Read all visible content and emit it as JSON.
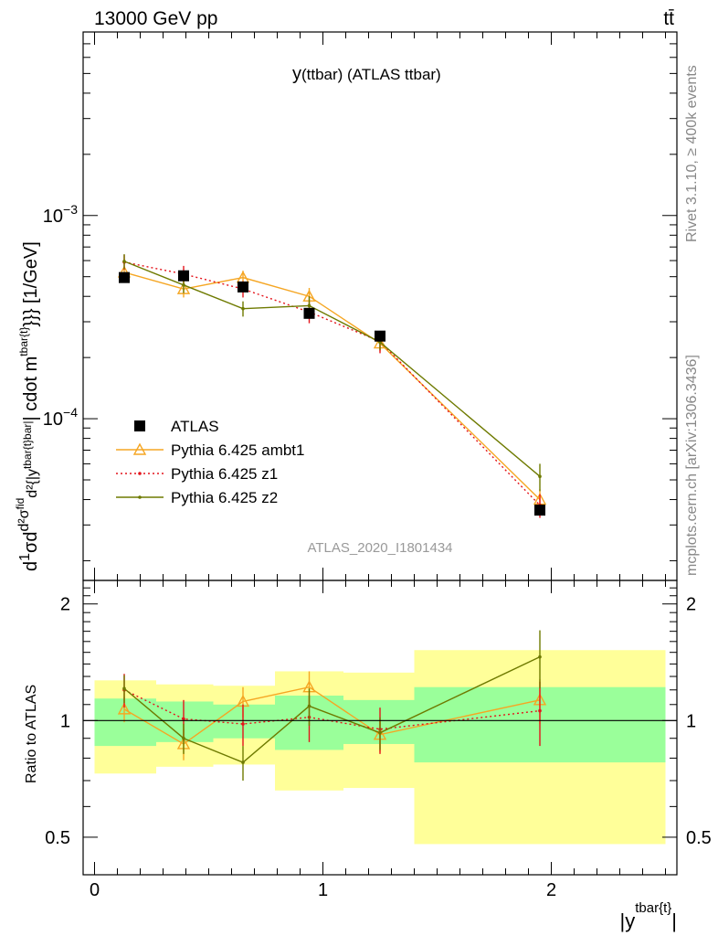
{
  "header": {
    "left": "13000 GeV pp",
    "right": "tt̄"
  },
  "side_labels": {
    "rivet": "Rivet 3.1.10, ≥ 400k events",
    "mcplots": "mcplots.cern.ch [arXiv:1306.3436]"
  },
  "chart_data": {
    "type": "scatter",
    "title": "y(ttbar) (ATLAS ttbar)",
    "title_main": "y",
    "title_rest": "(ttbar) (ATLAS ttbar)",
    "analysis": "ATLAS_2020_I1801434",
    "ylabel": "d 1/σ d dσ^fid/d² {|y^tbar{t}bar|| cdot m^tbar{t}}}} [1/GeV]",
    "ylabel_parts": [
      "d",
      "1",
      "σ",
      "d",
      "d²σ",
      "fid",
      "d²",
      "{|y",
      "tbar{t}bar|",
      "| cdot m",
      "tbar{t}",
      "}}} [1/GeV]"
    ],
    "xlabel": "|y^tbar{t}|",
    "xlabel_parts": [
      "|y",
      "tbar{t}",
      "|"
    ],
    "ratio_ylabel": "Ratio to ATLAS",
    "log_y": true,
    "ylim": [
      1.6e-05,
      0.008
    ],
    "xlim": [
      -0.05,
      2.55
    ],
    "ratio_ylim": [
      0.4,
      2.3
    ],
    "x_ticks": [
      "0",
      "1",
      "2"
    ],
    "y_ticks": [
      {
        "mantissa": "10",
        "exponent": "−3"
      },
      {
        "mantissa": "10",
        "exponent": "−4"
      }
    ],
    "ratio_ticks": [
      "0.5",
      "1",
      "2"
    ],
    "legend": {
      "position": "bottom-left",
      "entries": [
        "ATLAS",
        "Pythia 6.425 ambt1",
        "Pythia 6.425 z1",
        "Pythia 6.425 z2"
      ]
    },
    "colors": {
      "data": "#000000",
      "ambt1": "#f5a623",
      "z1": "#e4141b",
      "z2": "#6e7a00",
      "band_inner": "#9aff9a",
      "band_outer": "#ffff99"
    },
    "bins": [
      {
        "lo": 0.0,
        "hi": 0.27
      },
      {
        "lo": 0.27,
        "hi": 0.52
      },
      {
        "lo": 0.52,
        "hi": 0.79
      },
      {
        "lo": 0.79,
        "hi": 1.09
      },
      {
        "lo": 1.09,
        "hi": 1.4
      },
      {
        "lo": 1.4,
        "hi": 2.5
      }
    ],
    "x": [
      0.13,
      0.39,
      0.65,
      0.94,
      1.25,
      1.95
    ],
    "series": [
      {
        "name": "ATLAS",
        "values": [
          0.000495,
          0.000505,
          0.000445,
          0.00033,
          0.000255,
          3.55e-05
        ],
        "errors": [
          2e-05,
          2e-05,
          1.8e-05,
          1.5e-05,
          1.2e-05,
          2e-06
        ],
        "ratio_inner": [
          0.14,
          0.12,
          0.1,
          0.16,
          0.13,
          0.22
        ],
        "ratio_outer": [
          0.27,
          0.24,
          0.23,
          0.34,
          0.33,
          0.52
        ]
      },
      {
        "name": "Pythia 6.425 ambt1",
        "values": [
          0.000525,
          0.000435,
          0.000495,
          0.0004,
          0.000235,
          4e-05
        ],
        "errors": [
          3.5e-05,
          4e-05,
          4e-05,
          4e-05,
          2e-05,
          5e-06
        ],
        "ratio": [
          1.07,
          0.87,
          1.12,
          1.22,
          0.92,
          1.13
        ],
        "ratio_err": [
          0.08,
          0.08,
          0.1,
          0.12,
          0.09,
          0.15
        ]
      },
      {
        "name": "Pythia 6.425 z1",
        "values": [
          0.00059,
          0.000515,
          0.000435,
          0.000335,
          0.00024,
          3.75e-05
        ],
        "errors": [
          5e-05,
          5e-05,
          4e-05,
          4e-05,
          3e-05,
          5e-06
        ],
        "ratio": [
          1.2,
          1.01,
          0.98,
          1.02,
          0.95,
          1.06
        ],
        "ratio_err": [
          0.12,
          0.12,
          0.12,
          0.14,
          0.13,
          0.2
        ]
      },
      {
        "name": "Pythia 6.425 z2",
        "values": [
          0.000595,
          0.000455,
          0.000348,
          0.00036,
          0.000238,
          5.2e-05
        ],
        "errors": [
          5e-05,
          4e-05,
          3e-05,
          4e-05,
          2e-05,
          8e-06
        ],
        "ratio": [
          1.21,
          0.9,
          0.78,
          1.09,
          0.93,
          1.46
        ],
        "ratio_err": [
          0.1,
          0.08,
          0.08,
          0.12,
          0.09,
          0.25
        ]
      }
    ]
  }
}
